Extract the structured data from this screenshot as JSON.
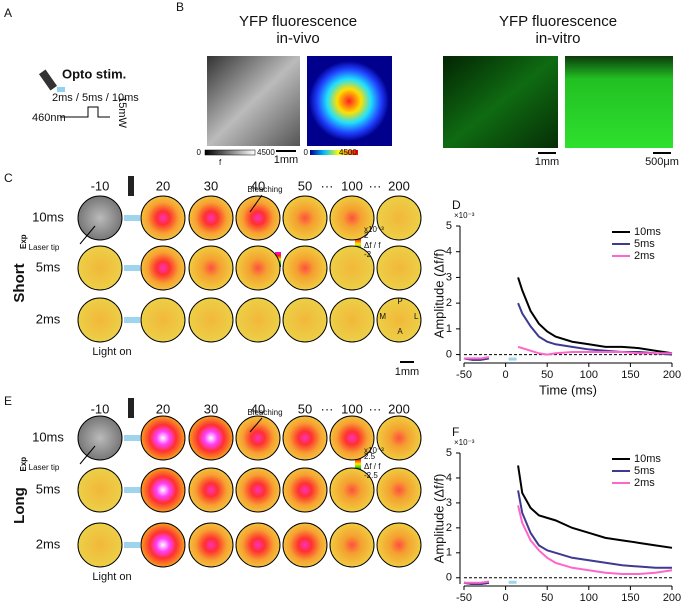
{
  "panels": {
    "A": {
      "letter": "A",
      "label": "Opto stim.",
      "durations": "2ms / 5ms / 10ms",
      "wavelength": "460nm",
      "power": "15mW"
    },
    "B": {
      "letter": "B",
      "in_vivo_title": [
        "YFP fluorescence",
        "in-vivo"
      ],
      "gray_scale": {
        "min": "0",
        "max": "4500",
        "label": "f"
      },
      "color_scale": {
        "min": "0",
        "max": "4500"
      },
      "in_vivo_scale": "1mm",
      "in_vitro_title": [
        "YFP fluorescence",
        "in-vitro"
      ],
      "in_vitro_scales": [
        "1mm",
        "500μm"
      ]
    },
    "C": {
      "letter": "C",
      "times": [
        "-10",
        "20",
        "30",
        "40",
        "50",
        "···",
        "100",
        "···",
        "200"
      ],
      "rows": [
        "10ms",
        "5ms",
        "2ms"
      ],
      "bleaching": "Bleaching",
      "laser_tip": "Laser tip",
      "light_on": "Light on",
      "colorbar": {
        "exponent": "x10⁻³",
        "max": "2",
        "label": "Δf / f",
        "min": "-2"
      },
      "compass": {
        "p": "P",
        "m": "M",
        "l": "L",
        "a": "A"
      },
      "scale": "1mm",
      "group": "Short",
      "group_sub": "Exp"
    },
    "E": {
      "letter": "E",
      "times": [
        "-10",
        "20",
        "30",
        "40",
        "50",
        "···",
        "100",
        "···",
        "200"
      ],
      "rows": [
        "10ms",
        "5ms",
        "2ms"
      ],
      "bleaching": "Bleaching",
      "laser_tip": "Laser tip",
      "light_on": "Light on",
      "colorbar": {
        "exponent": "x10⁻³",
        "max": "2.5",
        "label": "Δf / f",
        "min": "-2.5"
      },
      "group": "Long",
      "group_sub": "Exp"
    }
  },
  "chart_data": [
    {
      "type": "line",
      "letter": "D",
      "y_exponent": "×10⁻³",
      "xlabel": "Time (ms)",
      "ylabel": "Amplitude (Δf/f)",
      "x": [
        -50,
        -40,
        -30,
        -20,
        -10,
        15,
        20,
        30,
        40,
        50,
        60,
        80,
        100,
        120,
        140,
        160,
        180,
        200
      ],
      "series": [
        {
          "name": "10ms",
          "color": "#000000",
          "values": [
            -0.15,
            -0.2,
            -0.2,
            -0.15,
            null,
            3.0,
            2.5,
            1.7,
            1.2,
            0.9,
            0.7,
            0.5,
            0.4,
            0.3,
            0.3,
            0.25,
            0.15,
            0.05
          ]
        },
        {
          "name": "5ms",
          "color": "#3d3a8f",
          "values": [
            -0.15,
            -0.2,
            -0.2,
            -0.15,
            null,
            2.0,
            1.6,
            1.1,
            0.7,
            0.5,
            0.4,
            0.3,
            0.2,
            0.15,
            0.1,
            0.1,
            0.05,
            0.0
          ]
        },
        {
          "name": "2ms",
          "color": "#ff66cc",
          "values": [
            -0.15,
            -0.15,
            -0.15,
            -0.1,
            null,
            0.3,
            0.25,
            0.15,
            0.05,
            0.0,
            0.05,
            0.1,
            0.1,
            0.1,
            0.1,
            0.05,
            0.05,
            0.05
          ]
        }
      ],
      "xlim": [
        -50,
        200
      ],
      "xticks": [
        -50,
        0,
        50,
        100,
        150,
        200
      ],
      "ylim": [
        -0.25,
        5
      ],
      "yticks": [
        0,
        1,
        2,
        3,
        4,
        5
      ],
      "baseline": 0,
      "legend": "top-right"
    },
    {
      "type": "line",
      "letter": "F",
      "y_exponent": "×10⁻³",
      "xlabel": "Time (ms)",
      "ylabel": "Amplitude (Δf/f)",
      "x": [
        -50,
        -40,
        -30,
        -20,
        -10,
        15,
        20,
        30,
        40,
        50,
        60,
        80,
        100,
        120,
        140,
        160,
        180,
        200
      ],
      "series": [
        {
          "name": "10ms",
          "color": "#000000",
          "values": [
            -0.2,
            -0.25,
            -0.25,
            -0.2,
            null,
            4.5,
            3.4,
            2.8,
            2.5,
            2.4,
            2.3,
            2.0,
            1.8,
            1.6,
            1.5,
            1.4,
            1.3,
            1.2
          ]
        },
        {
          "name": "5ms",
          "color": "#3d3a8f",
          "values": [
            -0.2,
            -0.25,
            -0.25,
            -0.2,
            null,
            3.5,
            2.6,
            1.8,
            1.3,
            1.1,
            1.0,
            0.8,
            0.7,
            0.6,
            0.5,
            0.45,
            0.4,
            0.4
          ]
        },
        {
          "name": "2ms",
          "color": "#ff66cc",
          "values": [
            -0.2,
            -0.2,
            -0.2,
            -0.15,
            null,
            2.9,
            2.2,
            1.5,
            1.1,
            0.8,
            0.6,
            0.4,
            0.3,
            0.2,
            0.15,
            0.15,
            0.2,
            0.3
          ]
        }
      ],
      "xlim": [
        -50,
        200
      ],
      "xticks": [
        -50,
        0,
        50,
        100,
        150,
        200
      ],
      "ylim": [
        -0.25,
        5
      ],
      "yticks": [
        0,
        1,
        2,
        3,
        4,
        5
      ],
      "baseline": 0,
      "legend": "top-right"
    }
  ]
}
